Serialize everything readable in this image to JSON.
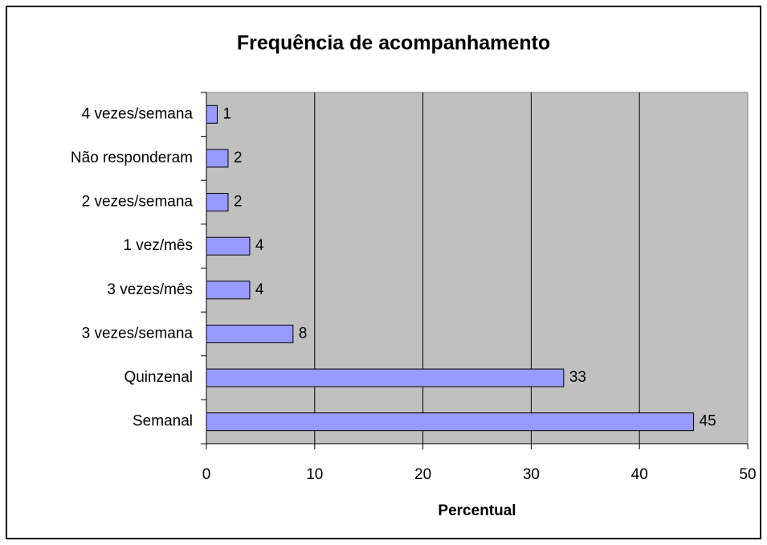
{
  "chart_data": {
    "type": "bar",
    "orientation": "horizontal",
    "title": "Frequência de acompanhamento",
    "x_label": "Percentual",
    "categories": [
      "4 vezes/semana",
      "Não responderam",
      "2 vezes/semana",
      "1 vez/mês",
      "3 vezes/mês",
      "3 vezes/semana",
      "Quinzenal",
      "Semanal"
    ],
    "values": [
      1,
      2,
      2,
      4,
      4,
      8,
      33,
      45
    ],
    "color": "#9999ff",
    "xlim": [
      0,
      50
    ],
    "xticks": [
      0,
      10,
      20,
      30,
      40,
      50
    ],
    "grid": true
  }
}
